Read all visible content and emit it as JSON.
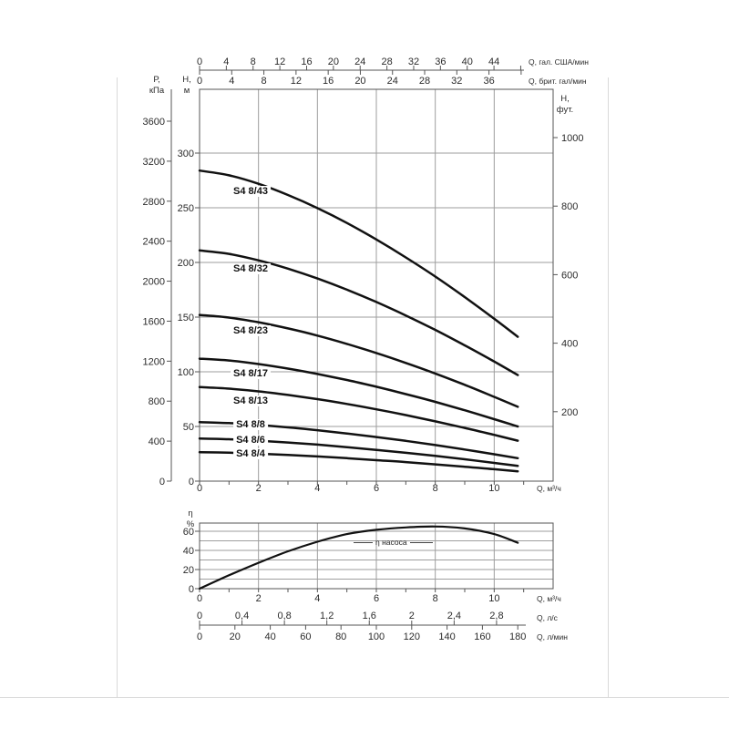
{
  "page": {
    "background": "#ffffff",
    "text_color": "#2b2b2b",
    "grid_color": "#9e9e9e",
    "border_color": "#555555",
    "curve_color": "#111111"
  },
  "chart_data": [
    {
      "type": "line",
      "title": "S4 8 pump head curves",
      "x_axis_m3h": {
        "label": "Q, м³/ч",
        "major_ticks": [
          0,
          2,
          4,
          6,
          8,
          10
        ],
        "minor_ticks": [
          1,
          3,
          5,
          7,
          9,
          11
        ],
        "range": [
          0,
          12
        ]
      },
      "x_axis_us_gpm": {
        "label": "Q, гал. США/мин",
        "ticks": [
          0,
          4,
          8,
          12,
          16,
          20,
          24,
          28,
          32,
          36,
          40,
          44
        ],
        "end_tick": 48
      },
      "x_axis_uk_gpm": {
        "label": "Q, брит. гал/мин",
        "ticks": [
          0,
          4,
          8,
          12,
          16,
          20,
          24,
          28,
          32,
          36
        ],
        "end_tick": 40
      },
      "y_axis_m": {
        "label_line1": "Н,",
        "label_line2": "м",
        "ticks": [
          0,
          50,
          100,
          150,
          200,
          250,
          300
        ],
        "range": [
          0,
          358
        ]
      },
      "y_axis_kpa": {
        "label_line1": "Р,",
        "label_line2": "кПа",
        "ticks": [
          0,
          400,
          800,
          1200,
          1600,
          2000,
          2400,
          2800,
          3200,
          3600
        ]
      },
      "y_axis_ft": {
        "label_line1": "Н,",
        "label_line2": "фут.",
        "ticks": [
          200,
          400,
          600,
          800,
          1000
        ]
      },
      "series": [
        {
          "name": "S4 8/43",
          "label_on_line": false,
          "points": [
            [
              0,
              284
            ],
            [
              1,
              279.7
            ],
            [
              2,
              271.9
            ],
            [
              3,
              261.7
            ],
            [
              4,
              249.7
            ],
            [
              5,
              236.1
            ],
            [
              6,
              221
            ],
            [
              7,
              204.6
            ],
            [
              8,
              187.1
            ],
            [
              9,
              168.3
            ],
            [
              10,
              148.5
            ],
            [
              10.8,
              132
            ]
          ]
        },
        {
          "name": "S4 8/32",
          "label_on_line": false,
          "points": [
            [
              0,
              211
            ],
            [
              1,
              207.8
            ],
            [
              2,
              201.9
            ],
            [
              3,
              194.3
            ],
            [
              4,
              185.3
            ],
            [
              5,
              175.1
            ],
            [
              6,
              163.8
            ],
            [
              7,
              151.5
            ],
            [
              8,
              138.3
            ],
            [
              9,
              124.2
            ],
            [
              10,
              109.4
            ],
            [
              10.8,
              97
            ]
          ]
        },
        {
          "name": "S4 8/23",
          "label_on_line": false,
          "points": [
            [
              0,
              152
            ],
            [
              1,
              149.6
            ],
            [
              2,
              145.3
            ],
            [
              3,
              139.7
            ],
            [
              4,
              133.1
            ],
            [
              5,
              125.5
            ],
            [
              6,
              117.2
            ],
            [
              7,
              108.1
            ],
            [
              8,
              98.4
            ],
            [
              9,
              88.1
            ],
            [
              10,
              77.1
            ],
            [
              10.8,
              68
            ]
          ]
        },
        {
          "name": "S4 8/17",
          "label_on_line": false,
          "points": [
            [
              0,
              112
            ],
            [
              1,
              110.3
            ],
            [
              2,
              107.1
            ],
            [
              3,
              102.9
            ],
            [
              4,
              98
            ],
            [
              5,
              92.5
            ],
            [
              6,
              86.3
            ],
            [
              7,
              79.6
            ],
            [
              8,
              72.5
            ],
            [
              9,
              64.8
            ],
            [
              10,
              56.7
            ],
            [
              10.8,
              50
            ]
          ]
        },
        {
          "name": "S4 8/13",
          "label_on_line": false,
          "points": [
            [
              0,
              86
            ],
            [
              1,
              84.6
            ],
            [
              2,
              82.1
            ],
            [
              3,
              78.8
            ],
            [
              4,
              75
            ],
            [
              5,
              70.6
            ],
            [
              6,
              65.7
            ],
            [
              7,
              60.4
            ],
            [
              8,
              54.7
            ],
            [
              9,
              48.7
            ],
            [
              10,
              42.3
            ],
            [
              10.8,
              37
            ]
          ]
        },
        {
          "name": "S4 8/8",
          "label_on_line": true,
          "points": [
            [
              0,
              54
            ],
            [
              1,
              53.1
            ],
            [
              2,
              51.4
            ],
            [
              3,
              49.2
            ],
            [
              4,
              46.6
            ],
            [
              5,
              43.6
            ],
            [
              6,
              40.3
            ],
            [
              7,
              36.8
            ],
            [
              8,
              33
            ],
            [
              9,
              28.9
            ],
            [
              10,
              24.6
            ],
            [
              10.8,
              21
            ]
          ]
        },
        {
          "name": "S4 8/6",
          "label_on_line": true,
          "points": [
            [
              0,
              39
            ],
            [
              1,
              38.3
            ],
            [
              2,
              37
            ],
            [
              3,
              35.3
            ],
            [
              4,
              33.4
            ],
            [
              5,
              31.1
            ],
            [
              6,
              28.6
            ],
            [
              7,
              25.9
            ],
            [
              8,
              23.1
            ],
            [
              9,
              20
            ],
            [
              10,
              16.7
            ],
            [
              10.8,
              14
            ]
          ]
        },
        {
          "name": "S4 8/4",
          "label_on_line": true,
          "points": [
            [
              0,
              26.5
            ],
            [
              1,
              26
            ],
            [
              2,
              25.1
            ],
            [
              3,
              23.9
            ],
            [
              4,
              22.6
            ],
            [
              5,
              21
            ],
            [
              6,
              19.2
            ],
            [
              7,
              17.4
            ],
            [
              8,
              15.3
            ],
            [
              9,
              13.2
            ],
            [
              10,
              10.9
            ],
            [
              10.8,
              9
            ]
          ]
        }
      ]
    },
    {
      "type": "line",
      "title": "Pump efficiency",
      "y_axis_pct": {
        "label_line1": "η",
        "label_line2": "%",
        "major_ticks": [
          0,
          20,
          40,
          60
        ],
        "minor_ticks": [
          10,
          30,
          50
        ],
        "range": [
          0,
          68
        ]
      },
      "x_axis_m3h": {
        "label": "Q, м³/ч",
        "major_ticks": [
          0,
          2,
          4,
          6,
          8,
          10
        ],
        "minor_ticks": [
          1,
          3,
          5,
          7,
          9,
          11
        ],
        "range": [
          0,
          12
        ]
      },
      "x_axis_lps": {
        "label": "Q, л/с",
        "tick_labels": [
          "0",
          "0,4",
          "0,8",
          "1,2",
          "1,6",
          "2",
          "2,4",
          "2,8"
        ],
        "tick_values": [
          0,
          0.4,
          0.8,
          1.2,
          1.6,
          2,
          2.4,
          2.8
        ]
      },
      "x_axis_lpm": {
        "label": "Q, л/мин",
        "ticks": [
          0,
          20,
          40,
          60,
          80,
          100,
          120,
          140,
          160,
          180
        ]
      },
      "series": [
        {
          "name": "η насоса",
          "points": [
            [
              0,
              0
            ],
            [
              1,
              14
            ],
            [
              2,
              27
            ],
            [
              3,
              39
            ],
            [
              4,
              49
            ],
            [
              5,
              57
            ],
            [
              6,
              61.5
            ],
            [
              7,
              64
            ],
            [
              8,
              65
            ],
            [
              9,
              63
            ],
            [
              10,
              57
            ],
            [
              10.8,
              48
            ]
          ]
        }
      ]
    }
  ]
}
